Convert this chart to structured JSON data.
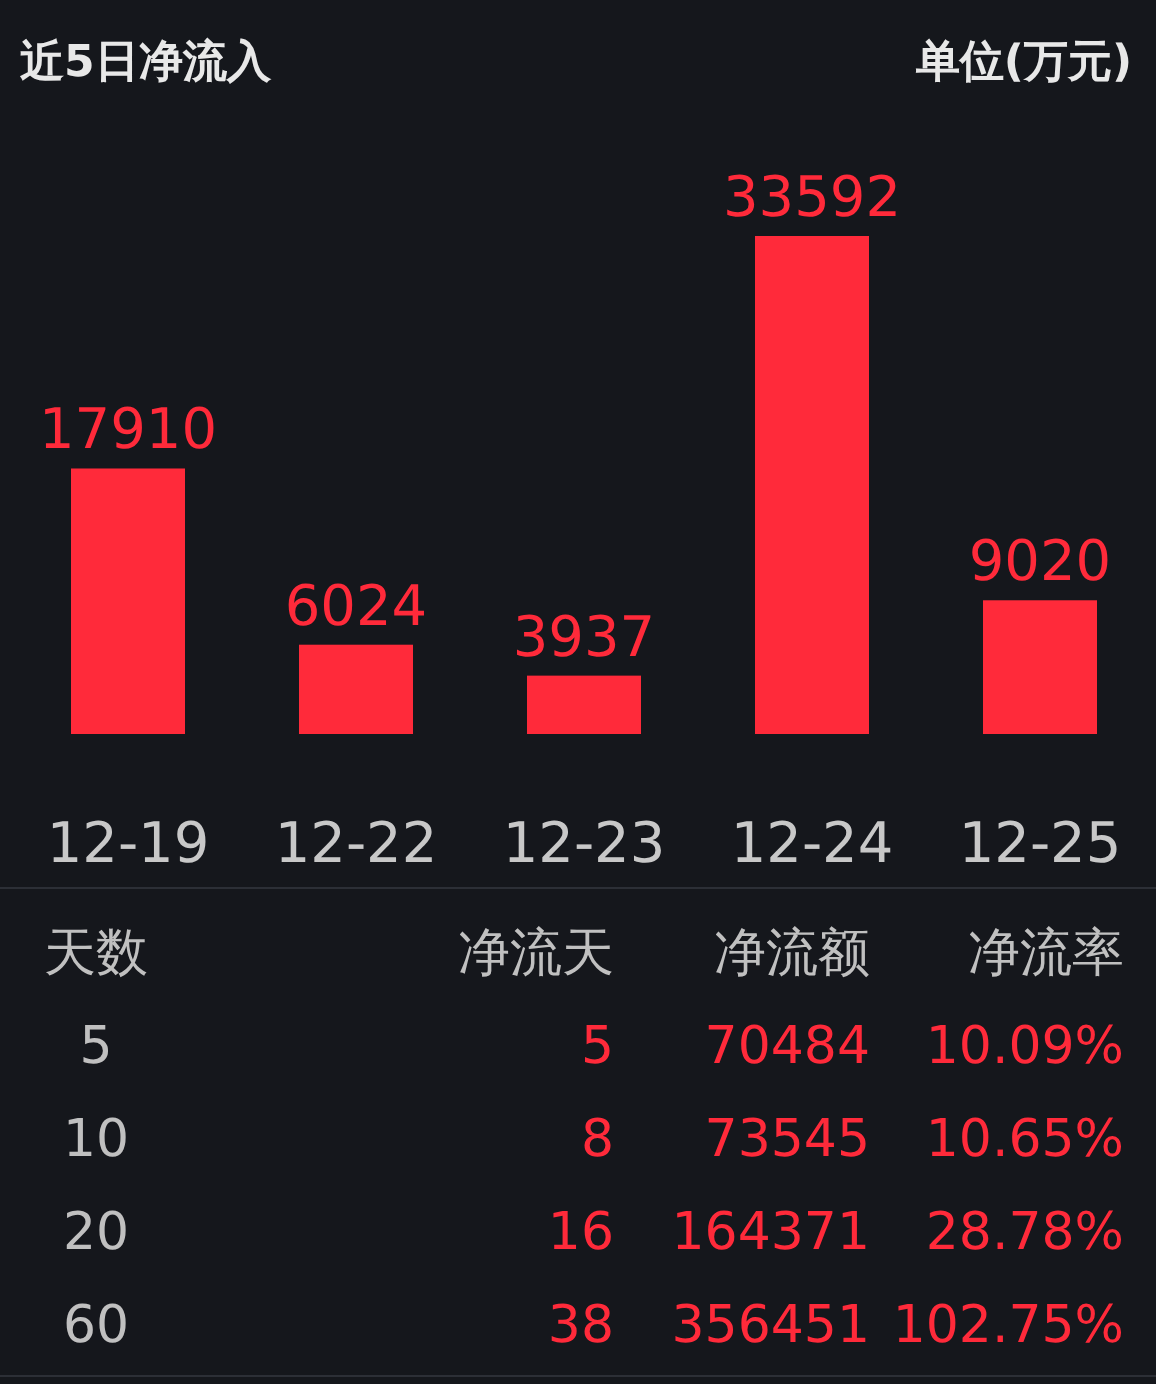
{
  "chart_data": [
    {
      "type": "bar",
      "title": "近5日净流入",
      "subtitle": "单位(万元)",
      "categories": [
        "12-19",
        "12-22",
        "12-23",
        "12-24",
        "12-25"
      ],
      "values": [
        17910,
        6024,
        3937,
        33592,
        9020
      ],
      "color": "#ff2a3a",
      "data_labels": true
    },
    {
      "type": "other",
      "annotations": [
        "天数",
        "净流天",
        "净流额",
        "净流率",
        "5",
        "5",
        "70484",
        "10.09%",
        "10",
        "8",
        "73545",
        "10.65%",
        "20",
        "16",
        "164371",
        "28.78%",
        "60",
        "38",
        "356451",
        "102.75%"
      ]
    }
  ]
}
